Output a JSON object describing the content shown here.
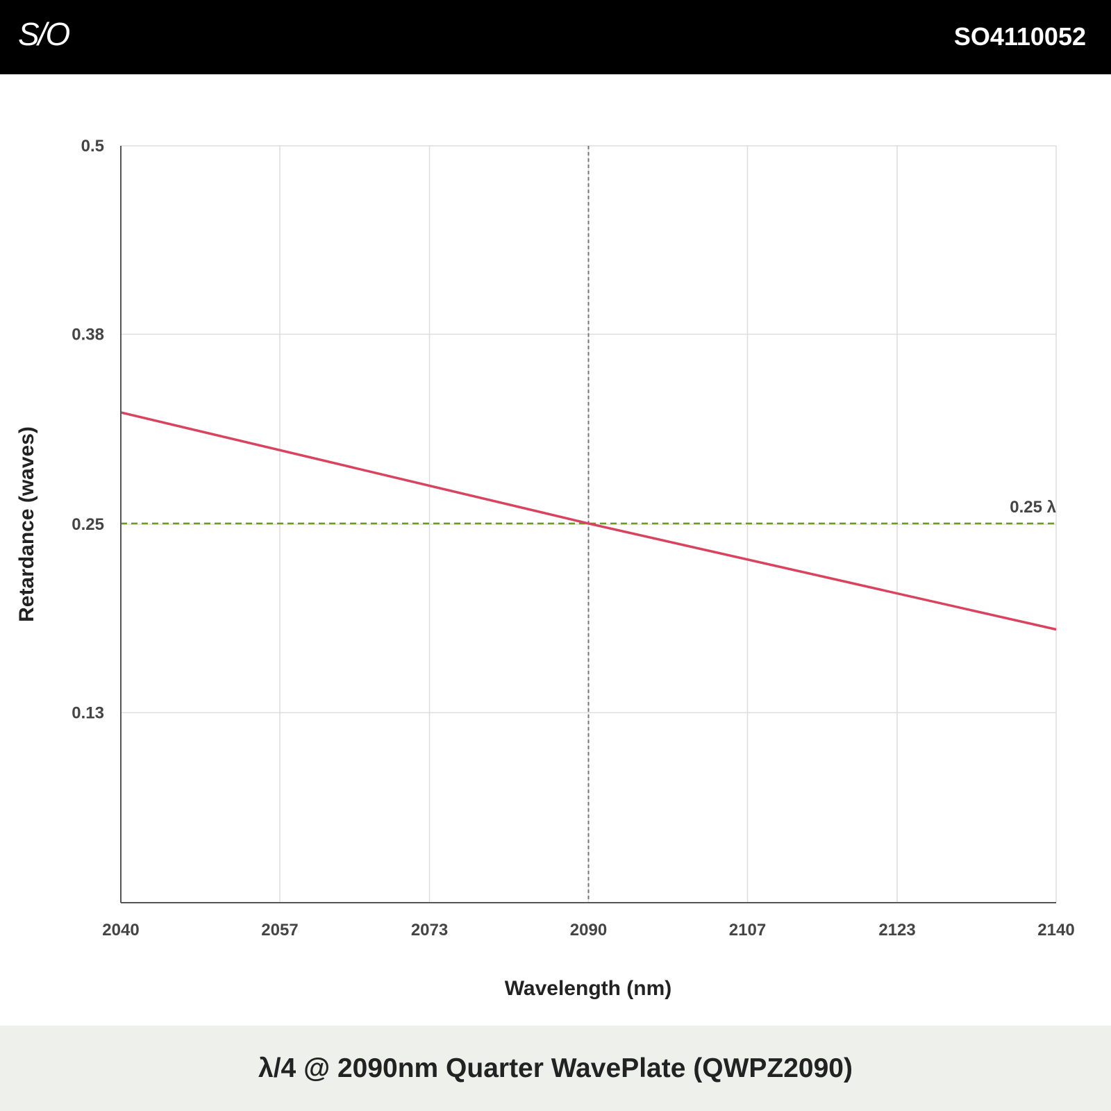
{
  "header": {
    "logo_text": "S/O",
    "part_number": "SO4110052"
  },
  "footer": {
    "title": "λ/4 @ 2090nm Quarter WavePlate (QWPZ2090)"
  },
  "colors": {
    "header_bg": "#000000",
    "footer_bg": "#eef0eb",
    "series": "#d9435e",
    "reference_line": "#6e9a1f",
    "design_line": "#777777",
    "grid": "#dddddd"
  },
  "chart_data": {
    "type": "line",
    "title": "",
    "xlabel": "Wavelength (nm)",
    "ylabel": "Retardance (waves)",
    "xlim": [
      2040,
      2140
    ],
    "ylim": [
      0.01,
      0.5
    ],
    "x_ticks": [
      "2040",
      "2057",
      "2073",
      "2090",
      "2107",
      "2123",
      "2140"
    ],
    "y_ticks": [
      "0.5",
      "0.38",
      "0.25",
      "0.13"
    ],
    "y_tick_values": [
      0.5,
      0.378,
      0.255,
      0.133
    ],
    "grid": true,
    "legend": "none",
    "series": [
      {
        "x": [
          2040,
          2090,
          2140
        ],
        "y": [
          0.3274,
          0.2555,
          0.1869
        ]
      }
    ],
    "reference_line": {
      "y": 0.2555,
      "label": "0.25 λ",
      "style": "dashed"
    },
    "design_wavelength": {
      "x": 2090,
      "style": "dashed"
    }
  }
}
